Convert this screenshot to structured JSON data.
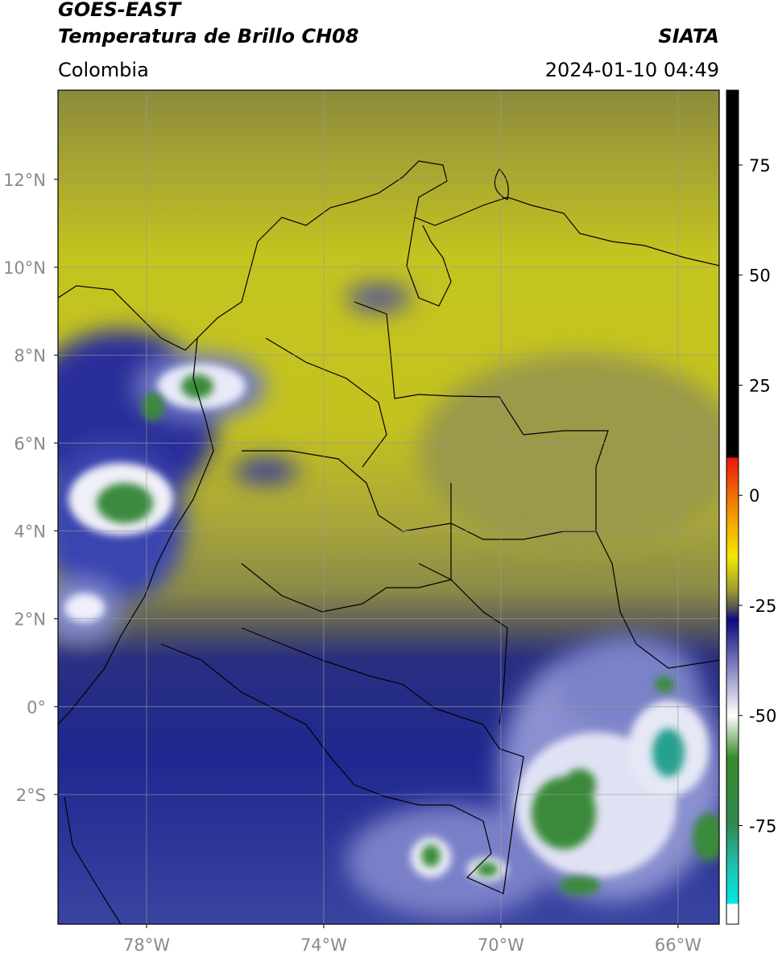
{
  "header": {
    "title": "GOES-EAST",
    "subtitle": "Temperatura de Brillo CH08",
    "agency": "SIATA",
    "region": "Colombia",
    "datetime": "2024-01-10 04:49"
  },
  "map": {
    "type": "map",
    "xlim": [
      -80,
      -65.07
    ],
    "ylim": [
      -4.95,
      14.03
    ],
    "grid": true,
    "xticks": [
      {
        "value": -78,
        "label": "78°W"
      },
      {
        "value": -74,
        "label": "74°W"
      },
      {
        "value": -70,
        "label": "70°W"
      },
      {
        "value": -66,
        "label": "66°W"
      }
    ],
    "yticks": [
      {
        "value": 12,
        "label": "12°N"
      },
      {
        "value": 10,
        "label": "10°N"
      },
      {
        "value": 8,
        "label": "8°N"
      },
      {
        "value": 6,
        "label": "6°N"
      },
      {
        "value": 4,
        "label": "4°N"
      },
      {
        "value": 2,
        "label": "2°N"
      },
      {
        "value": 0,
        "label": "0°"
      },
      {
        "value": -2,
        "label": "2°S"
      }
    ]
  },
  "colorbar": {
    "lim": [
      -97.4,
      92
    ],
    "ticks": [
      75,
      50,
      25,
      0,
      -25,
      -50,
      -75
    ]
  }
}
